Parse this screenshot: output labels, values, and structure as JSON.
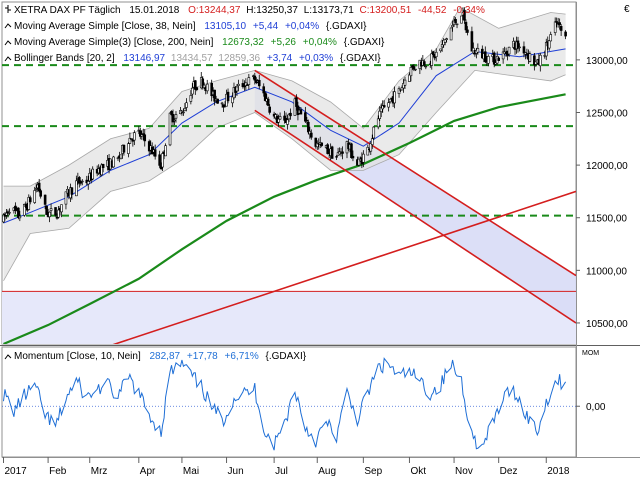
{
  "chart_data": [
    {
      "type": "candlestick",
      "panel": "price",
      "currency_symbol": "€",
      "legend": [
        {
          "name": "XETRA DAX PF Täglich",
          "date": "15.01.2018",
          "ohlc_text": {
            "open": "O:13244,37",
            "high": "H:13250,37",
            "low": "L:13173,71",
            "close": "C:13200,51",
            "change": "-44,52",
            "change_pct": "-0,34%"
          }
        },
        {
          "name": "Moving Average Simple [Close, 38, Nein]",
          "value": "13105,10",
          "change": "+5,44",
          "change_pct": "+0,04%",
          "symbol": "{.GDAXI}",
          "color": "#1f3fd6"
        },
        {
          "name": "Moving Average Simple(3) [Close, 200, Nein]",
          "value": "12673,32",
          "change": "+5,26",
          "change_pct": "+0,04%",
          "symbol": "{.GDAXI}",
          "color": "#1a8a1a"
        },
        {
          "name": "Bollinger Bands [20, 2]",
          "value": "13146,97",
          "upper": "13434,57",
          "lower": "12859,36",
          "change": "+3,74",
          "change_pct": "+0,03%",
          "symbol": "{.GDAXI}",
          "color": "#b0b0b0"
        }
      ],
      "y_ticks": [
        "13000,00",
        "12500,00",
        "12000,00",
        "11500,00",
        "11000,00",
        "10500,00"
      ],
      "y_tick_values": [
        13000,
        12500,
        12000,
        11500,
        11000,
        10500
      ],
      "ylim": [
        10300,
        13550
      ],
      "x_start": "2017-01-01",
      "x_end": "2018-01-22",
      "x_tick_labels": [
        "2017",
        "Feb",
        "Mrz",
        "Apr",
        "Mai",
        "Jun",
        "Jul",
        "Aug",
        "Sep",
        "Okt",
        "Nov",
        "Dez",
        "2018"
      ],
      "x_tick_dates": [
        "2017-01-02",
        "2017-02-01",
        "2017-03-01",
        "2017-04-03",
        "2017-05-02",
        "2017-06-01",
        "2017-07-03",
        "2017-08-01",
        "2017-09-01",
        "2017-10-02",
        "2017-11-01",
        "2017-12-01",
        "2018-01-02"
      ],
      "horizontal_levels": [
        {
          "value": 12950,
          "style": "dashed",
          "color": "#1a8a1a"
        },
        {
          "value": 12370,
          "style": "dashed",
          "color": "#1a8a1a"
        },
        {
          "value": 11520,
          "style": "dashed",
          "color": "#1a8a1a"
        },
        {
          "value": 10800,
          "style": "solid",
          "color": "#d41e1e"
        }
      ],
      "trend_lines": [
        {
          "name": "channel-upper",
          "start": [
            "2017-06-20",
            12900
          ],
          "end": [
            "2018-01-22",
            10950
          ],
          "color": "#d41e1e"
        },
        {
          "name": "channel-lower",
          "start": [
            "2017-06-20",
            12520
          ],
          "end": [
            "2018-01-22",
            10500
          ],
          "color": "#d41e1e"
        },
        {
          "name": "support-line",
          "start": [
            "2017-03-01",
            10220
          ],
          "end": [
            "2018-01-22",
            11750
          ],
          "color": "#d41e1e"
        }
      ],
      "channel_fill_color": "#d8dcf6",
      "sma200_series": [
        [
          "2017-01-02",
          10300
        ],
        [
          "2017-02-01",
          10480
        ],
        [
          "2017-03-01",
          10680
        ],
        [
          "2017-04-03",
          10920
        ],
        [
          "2017-05-02",
          11200
        ],
        [
          "2017-06-01",
          11470
        ],
        [
          "2017-07-03",
          11700
        ],
        [
          "2017-08-01",
          11860
        ],
        [
          "2017-09-01",
          12010
        ],
        [
          "2017-10-02",
          12210
        ],
        [
          "2017-11-01",
          12420
        ],
        [
          "2017-12-01",
          12550
        ],
        [
          "2018-01-15",
          12673
        ]
      ],
      "sma38_series": [
        [
          "2017-01-02",
          11450
        ],
        [
          "2017-01-20",
          11550
        ],
        [
          "2017-02-15",
          11700
        ],
        [
          "2017-03-15",
          11950
        ],
        [
          "2017-04-10",
          12100
        ],
        [
          "2017-05-02",
          12400
        ],
        [
          "2017-05-25",
          12600
        ],
        [
          "2017-06-20",
          12740
        ],
        [
          "2017-07-15",
          12600
        ],
        [
          "2017-08-10",
          12330
        ],
        [
          "2017-09-01",
          12180
        ],
        [
          "2017-09-25",
          12400
        ],
        [
          "2017-10-20",
          12850
        ],
        [
          "2017-11-15",
          13080
        ],
        [
          "2017-12-15",
          13030
        ],
        [
          "2018-01-15",
          13105
        ]
      ],
      "bollinger_upper": [
        [
          "2017-01-02",
          11800
        ],
        [
          "2017-01-20",
          11800
        ],
        [
          "2017-02-15",
          12000
        ],
        [
          "2017-03-15",
          12250
        ],
        [
          "2017-04-10",
          12350
        ],
        [
          "2017-05-02",
          12700
        ],
        [
          "2017-05-25",
          12800
        ],
        [
          "2017-06-20",
          12900
        ],
        [
          "2017-07-15",
          12800
        ],
        [
          "2017-08-10",
          12600
        ],
        [
          "2017-09-01",
          12350
        ],
        [
          "2017-09-25",
          12800
        ],
        [
          "2017-10-20",
          13100
        ],
        [
          "2017-11-05",
          13500
        ],
        [
          "2017-12-01",
          13300
        ],
        [
          "2018-01-05",
          13450
        ],
        [
          "2018-01-15",
          13435
        ]
      ],
      "bollinger_lower": [
        [
          "2017-01-02",
          10900
        ],
        [
          "2017-01-20",
          11350
        ],
        [
          "2017-02-15",
          11400
        ],
        [
          "2017-03-15",
          11750
        ],
        [
          "2017-04-10",
          11850
        ],
        [
          "2017-05-02",
          12050
        ],
        [
          "2017-05-25",
          12350
        ],
        [
          "2017-06-20",
          12500
        ],
        [
          "2017-07-15",
          12250
        ],
        [
          "2017-08-10",
          11950
        ],
        [
          "2017-09-01",
          11950
        ],
        [
          "2017-09-25",
          12100
        ],
        [
          "2017-10-20",
          12500
        ],
        [
          "2017-11-15",
          12900
        ],
        [
          "2017-12-10",
          12850
        ],
        [
          "2018-01-05",
          12800
        ],
        [
          "2018-01-15",
          12859
        ]
      ],
      "close_series": [
        [
          "2017-01-02",
          11480
        ],
        [
          "2017-01-06",
          11600
        ],
        [
          "2017-01-12",
          11520
        ],
        [
          "2017-01-18",
          11620
        ],
        [
          "2017-01-25",
          11810
        ],
        [
          "2017-01-31",
          11540
        ],
        [
          "2017-02-07",
          11550
        ],
        [
          "2017-02-13",
          11700
        ],
        [
          "2017-02-20",
          11830
        ],
        [
          "2017-02-27",
          11850
        ],
        [
          "2017-03-06",
          11960
        ],
        [
          "2017-03-13",
          12000
        ],
        [
          "2017-03-20",
          12050
        ],
        [
          "2017-03-27",
          12250
        ],
        [
          "2017-04-03",
          12300
        ],
        [
          "2017-04-10",
          12180
        ],
        [
          "2017-04-18",
          12000
        ],
        [
          "2017-04-24",
          12450
        ],
        [
          "2017-05-02",
          12500
        ],
        [
          "2017-05-09",
          12740
        ],
        [
          "2017-05-16",
          12800
        ],
        [
          "2017-05-23",
          12650
        ],
        [
          "2017-05-30",
          12600
        ],
        [
          "2017-06-06",
          12700
        ],
        [
          "2017-06-13",
          12780
        ],
        [
          "2017-06-20",
          12820
        ],
        [
          "2017-06-27",
          12650
        ],
        [
          "2017-07-03",
          12450
        ],
        [
          "2017-07-10",
          12400
        ],
        [
          "2017-07-17",
          12580
        ],
        [
          "2017-07-24",
          12400
        ],
        [
          "2017-07-31",
          12200
        ],
        [
          "2017-08-07",
          12150
        ],
        [
          "2017-08-14",
          12080
        ],
        [
          "2017-08-21",
          12200
        ],
        [
          "2017-08-28",
          12000
        ],
        [
          "2017-09-04",
          12150
        ],
        [
          "2017-09-11",
          12450
        ],
        [
          "2017-09-18",
          12600
        ],
        [
          "2017-09-25",
          12700
        ],
        [
          "2017-10-02",
          12900
        ],
        [
          "2017-10-09",
          12980
        ],
        [
          "2017-10-16",
          13000
        ],
        [
          "2017-10-23",
          13100
        ],
        [
          "2017-10-30",
          13300
        ],
        [
          "2017-11-06",
          13450
        ],
        [
          "2017-11-13",
          13100
        ],
        [
          "2017-11-20",
          13050
        ],
        [
          "2017-11-27",
          13000
        ],
        [
          "2017-12-04",
          13050
        ],
        [
          "2017-12-11",
          13150
        ],
        [
          "2017-12-18",
          13100
        ],
        [
          "2017-12-27",
          12950
        ],
        [
          "2018-01-03",
          13150
        ],
        [
          "2018-01-09",
          13350
        ],
        [
          "2018-01-15",
          13200
        ]
      ]
    },
    {
      "type": "line",
      "panel": "momentum",
      "legend": {
        "name": "Momentum [Close, 10, Nein]",
        "value": "282,87",
        "change": "+17,78",
        "change_pct": "+6,71%",
        "symbol": "{.GDAXI}",
        "color": "#1f6fd6"
      },
      "axis_label": "MOM",
      "y_ticks": [
        "0,00"
      ],
      "y_tick_values": [
        0
      ],
      "ylim": [
        -600,
        700
      ],
      "series": [
        {
          "name": "Momentum [Close, 10, Nein]",
          "values": [
            [
              "2017-01-02",
              150
            ],
            [
              "2017-01-09",
              -50
            ],
            [
              "2017-01-16",
              120
            ],
            [
              "2017-01-23",
              250
            ],
            [
              "2017-01-30",
              -100
            ],
            [
              "2017-02-06",
              -250
            ],
            [
              "2017-02-13",
              100
            ],
            [
              "2017-02-20",
              300
            ],
            [
              "2017-02-27",
              100
            ],
            [
              "2017-03-06",
              200
            ],
            [
              "2017-03-13",
              250
            ],
            [
              "2017-03-20",
              100
            ],
            [
              "2017-03-27",
              350
            ],
            [
              "2017-04-03",
              150
            ],
            [
              "2017-04-10",
              -100
            ],
            [
              "2017-04-18",
              -300
            ],
            [
              "2017-04-24",
              400
            ],
            [
              "2017-05-02",
              500
            ],
            [
              "2017-05-09",
              350
            ],
            [
              "2017-05-16",
              200
            ],
            [
              "2017-05-23",
              -50
            ],
            [
              "2017-05-30",
              -150
            ],
            [
              "2017-06-06",
              100
            ],
            [
              "2017-06-13",
              150
            ],
            [
              "2017-06-20",
              200
            ],
            [
              "2017-06-27",
              -300
            ],
            [
              "2017-07-03",
              -450
            ],
            [
              "2017-07-10",
              -200
            ],
            [
              "2017-07-17",
              200
            ],
            [
              "2017-07-24",
              -250
            ],
            [
              "2017-07-31",
              -400
            ],
            [
              "2017-08-07",
              -200
            ],
            [
              "2017-08-14",
              -350
            ],
            [
              "2017-08-21",
              150
            ],
            [
              "2017-08-28",
              -150
            ],
            [
              "2017-09-04",
              150
            ],
            [
              "2017-09-11",
              450
            ],
            [
              "2017-09-18",
              500
            ],
            [
              "2017-09-25",
              350
            ],
            [
              "2017-10-02",
              400
            ],
            [
              "2017-10-09",
              300
            ],
            [
              "2017-10-16",
              150
            ],
            [
              "2017-10-23",
              250
            ],
            [
              "2017-10-30",
              500
            ],
            [
              "2017-11-06",
              300
            ],
            [
              "2017-11-13",
              -350
            ],
            [
              "2017-11-20",
              -500
            ],
            [
              "2017-11-27",
              -200
            ],
            [
              "2017-12-04",
              100
            ],
            [
              "2017-12-11",
              200
            ],
            [
              "2017-12-18",
              -50
            ],
            [
              "2017-12-27",
              -300
            ],
            [
              "2018-01-03",
              100
            ],
            [
              "2018-01-09",
              300
            ],
            [
              "2018-01-15",
              283
            ]
          ]
        }
      ]
    }
  ]
}
